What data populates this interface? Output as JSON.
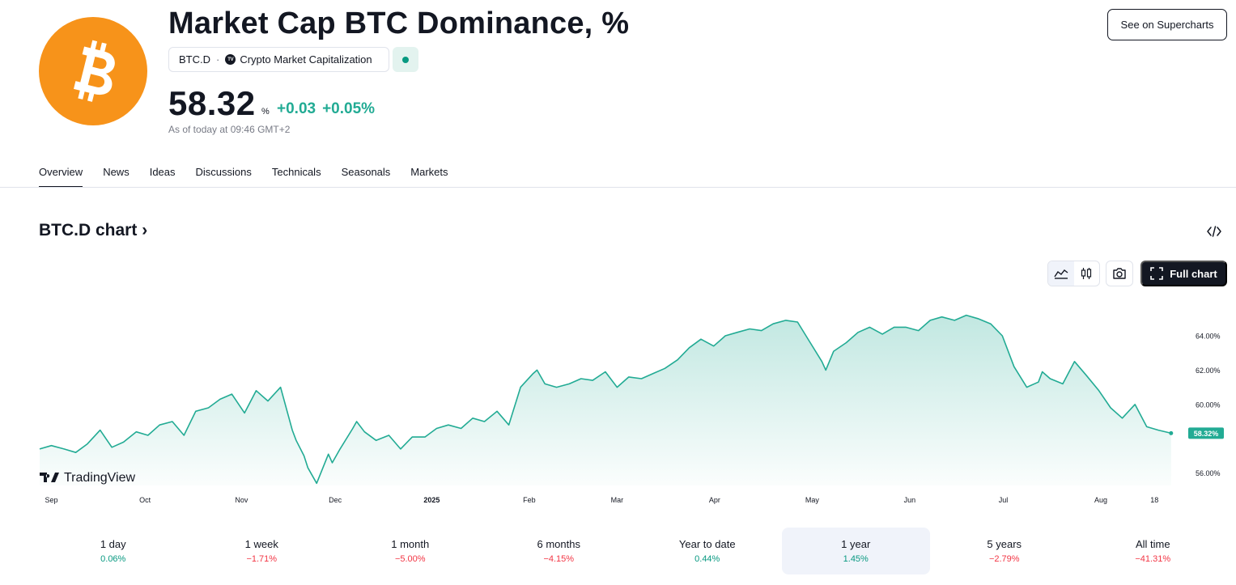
{
  "header": {
    "title": "Market Cap BTC Dominance, %",
    "symbol": "BTC.D",
    "separator": "·",
    "exchange_badge": "TV",
    "exchange": "Crypto Market Capitalization",
    "status_icon": "market-open-dot",
    "status_color": "#089981",
    "logo_icon": "bitcoin-icon",
    "logo_color": "#f7931a",
    "price": "58.32",
    "unit": "%",
    "change_abs": "+0.03",
    "change_pct": "+0.05%",
    "as_of": "As of today at 09:46 GMT+2",
    "supercharts_label": "See on Supercharts"
  },
  "tabs": [
    {
      "label": "Overview",
      "active": true
    },
    {
      "label": "News"
    },
    {
      "label": "Ideas"
    },
    {
      "label": "Discussions"
    },
    {
      "label": "Technicals"
    },
    {
      "label": "Seasonals"
    },
    {
      "label": "Markets"
    }
  ],
  "chart_section": {
    "title": "BTC.D chart",
    "title_chevron": "›",
    "full_chart_label": "Full chart",
    "watermark": "TradingView"
  },
  "chart_data": {
    "type": "area",
    "line_color": "#22ab94",
    "y_ticks": [
      {
        "label": "64.00%",
        "value": 64
      },
      {
        "label": "62.00%",
        "value": 62
      },
      {
        "label": "60.00%",
        "value": 60
      },
      {
        "label": "56.00%",
        "value": 56
      }
    ],
    "x_ticks": [
      {
        "label": "Sep",
        "month": 0.12
      },
      {
        "label": "Oct",
        "month": 1.08
      },
      {
        "label": "Nov",
        "month": 2.07
      },
      {
        "label": "Dec",
        "month": 3.03
      },
      {
        "label": "2025",
        "month": 4.02,
        "bold": true
      },
      {
        "label": "Feb",
        "month": 5.02
      },
      {
        "label": "Mar",
        "month": 5.92
      },
      {
        "label": "Apr",
        "month": 6.92
      },
      {
        "label": "May",
        "month": 7.92
      },
      {
        "label": "Jun",
        "month": 8.92
      },
      {
        "label": "Jul",
        "month": 9.88
      },
      {
        "label": "Aug",
        "month": 10.88
      },
      {
        "label": "18",
        "month": 11.43
      }
    ],
    "last_value_label": "58.32%",
    "last_value": 58.32,
    "series": [
      {
        "x": [
          0.0,
          0.12,
          0.25,
          0.37,
          0.49,
          0.62,
          0.74,
          0.86,
          0.99,
          1.11,
          1.23,
          1.36,
          1.48,
          1.6,
          1.73,
          1.85,
          1.97,
          2.1,
          2.22,
          2.34,
          2.47,
          2.59,
          2.63,
          2.71,
          2.75,
          2.84,
          2.96,
          3.0,
          3.08,
          3.21,
          3.25,
          3.33,
          3.45,
          3.58,
          3.7,
          3.82,
          3.95,
          4.07,
          4.19,
          4.32,
          4.44,
          4.56,
          4.69,
          4.81,
          4.93,
          5.06,
          5.1,
          5.18,
          5.3,
          5.43,
          5.55,
          5.67,
          5.8,
          5.92,
          6.04,
          6.17,
          6.29,
          6.41,
          6.54,
          6.66,
          6.78,
          6.91,
          7.03,
          7.15,
          7.28,
          7.4,
          7.52,
          7.65,
          7.77,
          7.9,
          8.02,
          8.06,
          8.14,
          8.27,
          8.39,
          8.51,
          8.64,
          8.76,
          8.88,
          9.01,
          9.13,
          9.25,
          9.38,
          9.5,
          9.62,
          9.75,
          9.87,
          9.99,
          10.12,
          10.24,
          10.28,
          10.36,
          10.49,
          10.61,
          10.73,
          10.86,
          10.98,
          11.1,
          11.23,
          11.35,
          11.47,
          11.6
        ],
        "values": [
          57.4,
          57.6,
          57.4,
          57.2,
          57.7,
          58.5,
          57.5,
          57.8,
          58.4,
          58.2,
          58.8,
          59.0,
          58.2,
          59.6,
          59.8,
          60.3,
          60.6,
          59.5,
          60.8,
          60.2,
          61.0,
          58.5,
          57.9,
          57.0,
          56.3,
          55.4,
          57.1,
          56.6,
          57.4,
          58.6,
          59.0,
          58.4,
          57.9,
          58.2,
          57.4,
          58.1,
          58.1,
          58.6,
          58.8,
          58.6,
          59.2,
          59.0,
          59.6,
          58.8,
          61.0,
          61.8,
          62.0,
          61.2,
          61.0,
          61.2,
          61.5,
          61.4,
          61.9,
          61.0,
          61.6,
          61.5,
          61.8,
          62.1,
          62.6,
          63.3,
          63.8,
          63.4,
          64.0,
          64.2,
          64.4,
          64.3,
          64.7,
          64.9,
          64.8,
          63.6,
          62.5,
          62.0,
          63.1,
          63.6,
          64.2,
          64.5,
          64.1,
          64.5,
          64.5,
          64.3,
          64.9,
          65.1,
          64.9,
          65.2,
          65.0,
          64.7,
          64.0,
          62.2,
          61.0,
          61.3,
          61.9,
          61.5,
          61.2,
          62.5,
          61.7,
          60.8,
          59.8,
          59.2,
          60.0,
          58.7,
          58.5,
          58.32
        ]
      }
    ]
  },
  "periods": [
    {
      "label": "1 day",
      "value": "0.06%",
      "dir": "pos"
    },
    {
      "label": "1 week",
      "value": "−1.71%",
      "dir": "neg"
    },
    {
      "label": "1 month",
      "value": "−5.00%",
      "dir": "neg"
    },
    {
      "label": "6 months",
      "value": "−4.15%",
      "dir": "neg"
    },
    {
      "label": "Year to date",
      "value": "0.44%",
      "dir": "pos"
    },
    {
      "label": "1 year",
      "value": "1.45%",
      "dir": "pos",
      "selected": true
    },
    {
      "label": "5 years",
      "value": "−2.79%",
      "dir": "neg"
    },
    {
      "label": "All time",
      "value": "−41.31%",
      "dir": "neg"
    }
  ]
}
